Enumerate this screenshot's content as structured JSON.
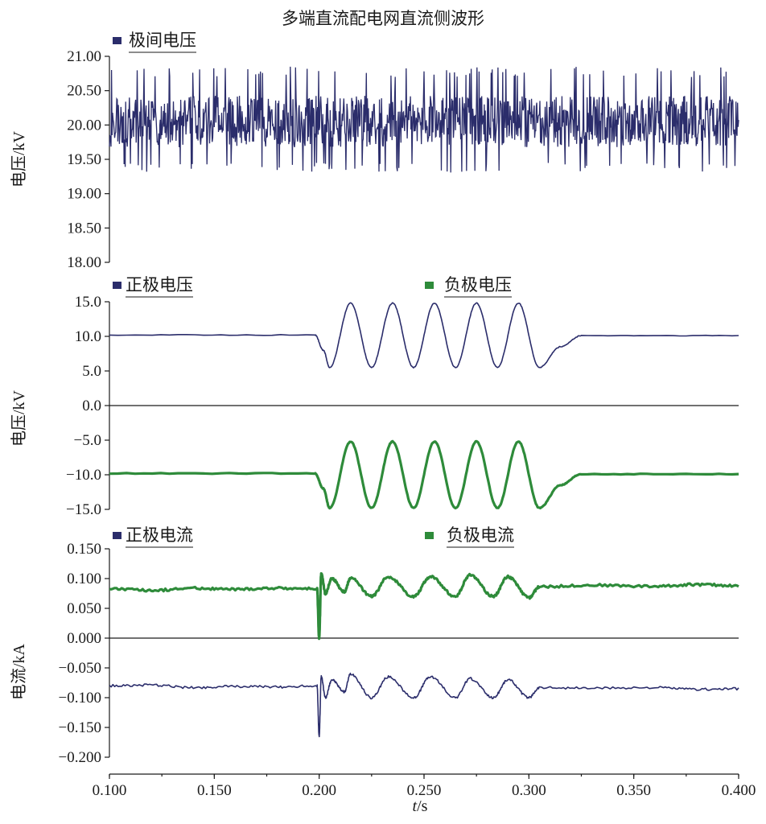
{
  "title": "多端直流配电网直流侧波形",
  "colors": {
    "blue": "#2b2d6b",
    "green": "#2e8b3a",
    "axis": "#1a1a1a"
  },
  "chart_data": [
    {
      "type": "line",
      "ylabel": "电压/kV",
      "xlim": [
        0.1,
        0.4
      ],
      "ylim": [
        18.0,
        21.0
      ],
      "yticks": [
        "21.00",
        "20.50",
        "20.00",
        "19.50",
        "19.00",
        "18.50",
        "18.00"
      ],
      "legend": [
        {
          "name": "极间电压",
          "color": "#2b2d6b"
        }
      ],
      "series": [
        {
          "name": "极间电压",
          "color": "#2b2d6b",
          "x": [
            0.1,
            0.15,
            0.2,
            0.25,
            0.3,
            0.35,
            0.4
          ],
          "y": [
            20.05,
            20.05,
            20.05,
            20.05,
            20.05,
            20.05,
            20.05
          ],
          "noise_min": 19.3,
          "noise_max": 20.85
        }
      ]
    },
    {
      "type": "line",
      "ylabel": "电压/kV",
      "xlim": [
        0.1,
        0.4
      ],
      "ylim": [
        -15.0,
        15.0
      ],
      "yticks": [
        "15.0",
        "10.0",
        "5.0",
        "0.0",
        "−5.0",
        "−10.0",
        "−15.0"
      ],
      "zero_line": true,
      "legend": [
        {
          "name": "正极电压",
          "color": "#2b2d6b"
        },
        {
          "name": "负极电压",
          "color": "#2e8b3a"
        }
      ],
      "series": [
        {
          "name": "正极电压",
          "color": "#2b2d6b",
          "x": [
            0.1,
            0.198,
            0.202,
            0.205,
            0.215,
            0.225,
            0.235,
            0.245,
            0.255,
            0.265,
            0.275,
            0.285,
            0.295,
            0.305,
            0.315,
            0.325,
            0.4
          ],
          "y": [
            10.2,
            10.2,
            8.0,
            5.5,
            14.8,
            5.5,
            14.8,
            5.5,
            14.8,
            5.5,
            14.8,
            5.5,
            14.8,
            5.5,
            8.5,
            10.1,
            10.1
          ]
        },
        {
          "name": "负极电压",
          "color": "#2e8b3a",
          "x": [
            0.1,
            0.198,
            0.202,
            0.205,
            0.215,
            0.225,
            0.235,
            0.245,
            0.255,
            0.265,
            0.275,
            0.285,
            0.295,
            0.305,
            0.315,
            0.325,
            0.4
          ],
          "y": [
            -9.8,
            -9.8,
            -12.0,
            -14.8,
            -5.2,
            -14.8,
            -5.2,
            -14.8,
            -5.2,
            -14.8,
            -5.2,
            -14.8,
            -5.2,
            -14.8,
            -11.5,
            -9.9,
            -9.9
          ]
        }
      ]
    },
    {
      "type": "line",
      "ylabel": "电流/kA",
      "xlim": [
        0.1,
        0.4
      ],
      "ylim": [
        -0.2,
        0.15
      ],
      "yticks": [
        "0.150",
        "0.100",
        "0.050",
        "0.000",
        "−0.050",
        "−0.100",
        "−0.150",
        "−0.200"
      ],
      "zero_line": true,
      "legend": [
        {
          "name": "正极电流",
          "color": "#2b2d6b"
        },
        {
          "name": "负极电流",
          "color": "#2e8b3a"
        }
      ],
      "series": [
        {
          "name": "正极电流",
          "color": "#2b2d6b",
          "x": [
            0.1,
            0.12,
            0.14,
            0.16,
            0.18,
            0.199,
            0.2,
            0.201,
            0.203,
            0.206,
            0.212,
            0.215,
            0.225,
            0.233,
            0.245,
            0.253,
            0.265,
            0.272,
            0.283,
            0.29,
            0.3,
            0.305,
            0.33,
            0.36,
            0.38,
            0.4
          ],
          "y": [
            -0.08,
            -0.079,
            -0.083,
            -0.081,
            -0.082,
            -0.08,
            -0.165,
            -0.065,
            -0.1,
            -0.07,
            -0.09,
            -0.06,
            -0.1,
            -0.065,
            -0.1,
            -0.065,
            -0.1,
            -0.068,
            -0.1,
            -0.07,
            -0.1,
            -0.083,
            -0.084,
            -0.083,
            -0.086,
            -0.085
          ]
        },
        {
          "name": "负极电流",
          "color": "#2e8b3a",
          "x": [
            0.1,
            0.12,
            0.14,
            0.16,
            0.18,
            0.199,
            0.2,
            0.201,
            0.203,
            0.206,
            0.212,
            0.215,
            0.225,
            0.233,
            0.245,
            0.253,
            0.265,
            0.272,
            0.283,
            0.29,
            0.3,
            0.305,
            0.33,
            0.36,
            0.38,
            0.4
          ],
          "y": [
            0.083,
            0.08,
            0.084,
            0.082,
            0.084,
            0.083,
            0.0,
            0.108,
            0.075,
            0.1,
            0.078,
            0.101,
            0.07,
            0.103,
            0.07,
            0.103,
            0.07,
            0.106,
            0.07,
            0.103,
            0.068,
            0.086,
            0.089,
            0.087,
            0.09,
            0.088
          ]
        }
      ]
    }
  ],
  "x_axis": {
    "ticks": [
      "0.100",
      "0.150",
      "0.200",
      "0.250",
      "0.300",
      "0.350",
      "0.400"
    ],
    "tick_values": [
      0.1,
      0.15,
      0.2,
      0.25,
      0.3,
      0.35,
      0.4
    ],
    "label_italic": "t",
    "label_rest": "/s"
  }
}
